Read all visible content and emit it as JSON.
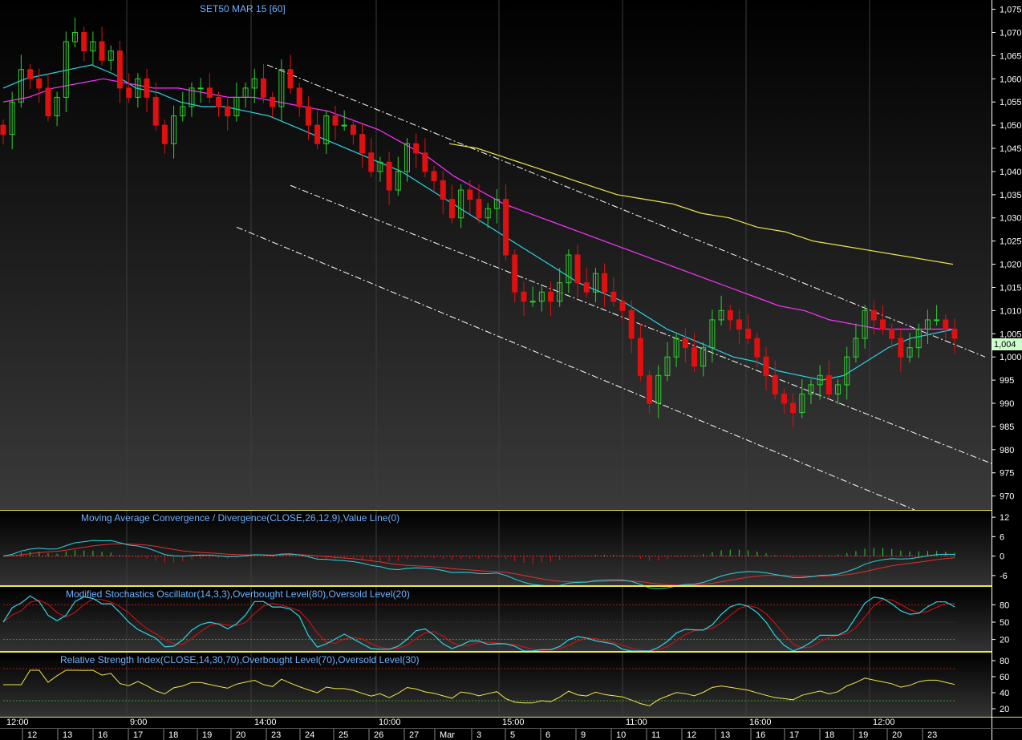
{
  "title": "SET50 MAR 15   [60]",
  "colors": {
    "up": "#2fd12f",
    "down": "#e01010",
    "ma_cyan": "#29d6e6",
    "ma_magenta": "#ff33ff",
    "ma_yellow": "#f0e64a",
    "trend": "#ffffff",
    "title_blue": "#6fb0ff",
    "panel_border": "#f0e64a",
    "macd_line": "#29d6e6",
    "macd_signal": "#e03030",
    "stoch_k": "#29d6e6",
    "stoch_d": "#e01010",
    "rsi": "#f0e64a",
    "last_bg": "#ccffcc"
  },
  "main_panel": {
    "y_ticks": [
      "1,075",
      "1,070",
      "1,065",
      "1,060",
      "1,055",
      "1,050",
      "1,045",
      "1,040",
      "1,035",
      "1,030",
      "1,025",
      "1,020",
      "1,015",
      "1,010",
      "1,005",
      "1,000",
      "995",
      "990",
      "985",
      "980",
      "975",
      "970"
    ],
    "last_value": "1,004"
  },
  "macd_panel": {
    "title": "Moving Average Convergence / Divergence(CLOSE,26,12,9),Value Line(0)",
    "y_ticks": [
      "12",
      "6",
      "0",
      "-6"
    ]
  },
  "stoch_panel": {
    "title": "Modified Stochastics Oscillator(14,3,3),Overbought Level(80),Oversold Level(20)",
    "y_ticks": [
      "80",
      "50",
      "20"
    ]
  },
  "rsi_panel": {
    "title": "Relative Strength Index(CLOSE,14,30,70),Overbought Level(70),Oversold Level(30)",
    "y_ticks": [
      "80",
      "60",
      "40",
      "20"
    ]
  },
  "time_labels": [
    "12:00",
    "9:00",
    "14:00",
    "10:00",
    "15:00",
    "11:00",
    "16:00",
    "12:00"
  ],
  "date_labels": [
    "12",
    "13",
    "16",
    "17",
    "18",
    "19",
    "20",
    "23",
    "24",
    "25",
    "26",
    "27",
    "Mar",
    "3",
    "5",
    "6",
    "9",
    "10",
    "11",
    "12",
    "13",
    "16",
    "17",
    "18",
    "19",
    "20",
    "23"
  ],
  "chart_data": {
    "type": "candlestick",
    "title": "SET50 MAR 15   [60]",
    "ylim": [
      967,
      1077
    ],
    "close_series": [
      1048,
      1055,
      1062,
      1060,
      1058,
      1052,
      1056,
      1068,
      1070,
      1066,
      1068,
      1064,
      1066,
      1058,
      1056,
      1060,
      1056,
      1050,
      1046,
      1052,
      1054,
      1058,
      1058,
      1056,
      1054,
      1052,
      1056,
      1058,
      1060,
      1056,
      1054,
      1062,
      1058,
      1054,
      1050,
      1046,
      1052,
      1050,
      1050,
      1048,
      1044,
      1040,
      1042,
      1036,
      1040,
      1046,
      1044,
      1040,
      1038,
      1034,
      1030,
      1036,
      1034,
      1030,
      1032,
      1034,
      1022,
      1014,
      1012,
      1012,
      1014,
      1012,
      1016,
      1022,
      1016,
      1014,
      1018,
      1014,
      1012,
      1010,
      1004,
      996,
      990,
      996,
      1000,
      1004,
      1002,
      998,
      1002,
      1008,
      1010,
      1008,
      1006,
      1004,
      1000,
      996,
      992,
      990,
      988,
      992,
      994,
      996,
      992,
      994,
      1000,
      1004,
      1010,
      1008,
      1006,
      1004,
      1000,
      1002,
      1006,
      1008,
      1008,
      1006,
      1004
    ],
    "ma_cyan": [
      1058,
      1060,
      1061,
      1062,
      1063,
      1061,
      1058,
      1057,
      1055,
      1054,
      1054,
      1053,
      1052,
      1050,
      1048,
      1046,
      1044,
      1042,
      1040,
      1037,
      1034,
      1031,
      1028,
      1025,
      1022,
      1019,
      1016,
      1014,
      1012,
      1009,
      1006,
      1004,
      1002,
      1000,
      999,
      997,
      996,
      995,
      996,
      999,
      1002,
      1004,
      1005,
      1006
    ],
    "ma_magenta": [
      1055,
      1056,
      1058,
      1059,
      1060,
      1059,
      1058,
      1058,
      1057,
      1056,
      1056,
      1055,
      1054,
      1053,
      1051,
      1049,
      1046,
      1043,
      1039,
      1036,
      1033,
      1031,
      1029,
      1027,
      1025,
      1023,
      1021,
      1019,
      1017,
      1015,
      1013,
      1011,
      1010,
      1008,
      1007,
      1006,
      1006,
      1006,
      1006
    ],
    "ma_yellow": [
      1046,
      1045,
      1043,
      1041,
      1039,
      1037,
      1035,
      1034,
      1033,
      1031,
      1030,
      1028,
      1027,
      1025,
      1024,
      1023,
      1022,
      1021,
      1020
    ],
    "indicators": {
      "macd_ylim": [
        -9,
        14
      ],
      "stoch_levels": [
        80,
        50,
        20
      ],
      "rsi_levels": [
        70,
        30
      ]
    }
  }
}
